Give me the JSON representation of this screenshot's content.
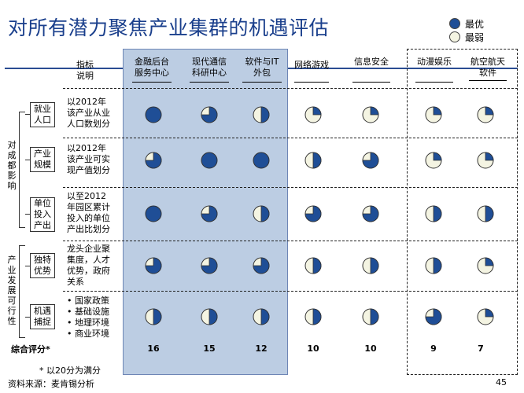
{
  "title": "对所有潜力聚焦产业集群的机遇评估",
  "legend": {
    "best": "最优",
    "worst": "最弱"
  },
  "colors": {
    "accent": "#1f4e96",
    "title": "#1a3f8c",
    "band": "#bccde3"
  },
  "indicator_header": "指标\n说明",
  "columns": [
    "金融后台\n服务中心",
    "现代通信\n科研中心",
    "软件与IT\n外包",
    "网络游戏",
    "信息安全",
    "动漫娱乐",
    "航空航天\n软件"
  ],
  "groups": [
    {
      "label": "对成都影响",
      "rows": [
        0,
        1,
        2
      ]
    },
    {
      "label": "产业发展可行性",
      "rows": [
        3,
        4
      ]
    }
  ],
  "rows": [
    {
      "category": "就业\n人口",
      "description": "以2012年\n该产业从业\n人口数划分",
      "ratings": [
        1.0,
        0.75,
        0.5,
        0.25,
        0.25,
        0.25,
        0.25
      ]
    },
    {
      "category": "产业\n规模",
      "description": "以2012年\n该产业可实\n现产值划分",
      "ratings": [
        0.75,
        1.0,
        1.0,
        0.5,
        0.75,
        0.25,
        0.25
      ]
    },
    {
      "category": "单位\n投入\n产出",
      "description": "以至2012\n年园区累计\n投入的单位\n产出比划分",
      "ratings": [
        1.0,
        0.75,
        0.5,
        0.75,
        0.75,
        0.5,
        0.5
      ]
    },
    {
      "category": "独特\n优势",
      "description": "龙头企业聚\n集度，人才\n优势，政府\n关系",
      "ratings": [
        0.75,
        0.75,
        0.75,
        0.5,
        0.5,
        0.5,
        0.25
      ]
    },
    {
      "category": "机遇\n捕捉",
      "bullets": [
        "国家政策",
        "基础设施",
        "地理环境",
        "商业环境"
      ],
      "ratings": [
        0.5,
        0.5,
        0.5,
        0.5,
        0.5,
        0.75,
        0.25
      ]
    }
  ],
  "score_label": "综合评分*",
  "scores": [
    "16",
    "15",
    "12",
    "10",
    "10",
    "9",
    "7"
  ],
  "footnote": "* 以20分为满分",
  "source": "资料来源：麦肯锡分析",
  "page_number": "45"
}
